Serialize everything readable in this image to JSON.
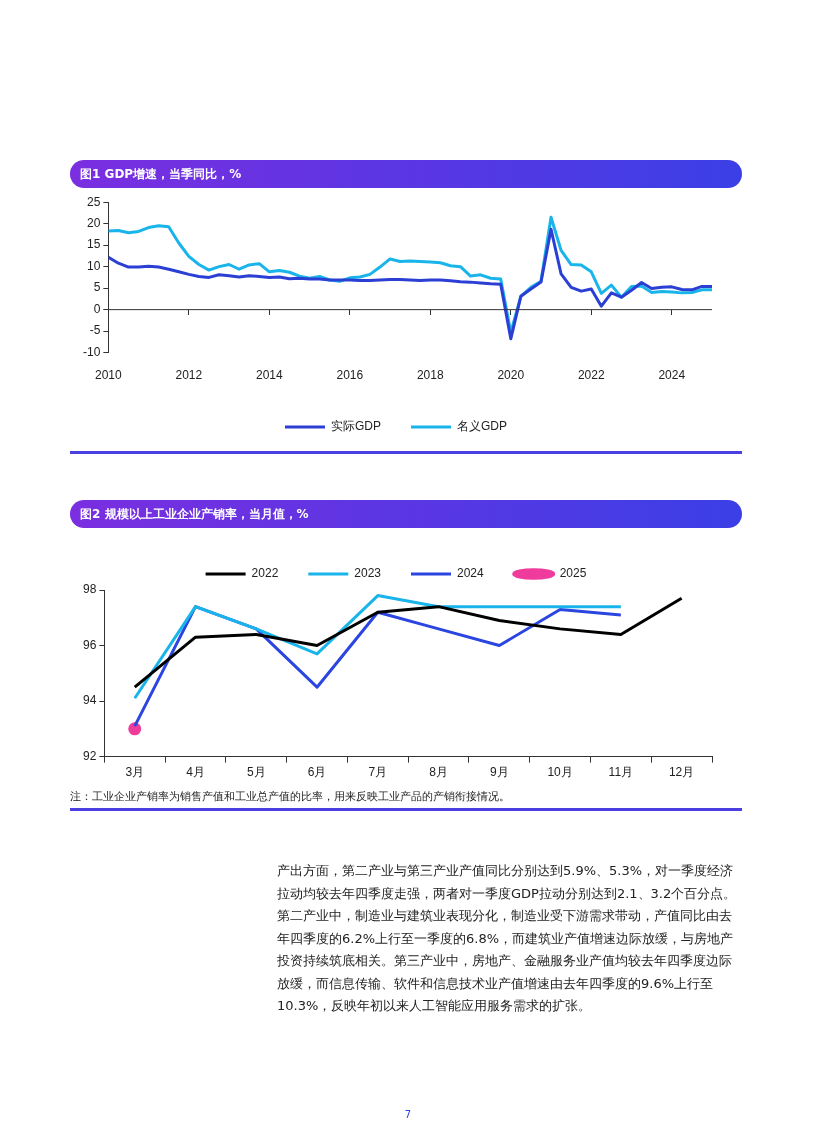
{
  "chart_data": [
    {
      "type": "line",
      "title": "图1 GDP增速，当季同比，%",
      "x": [
        2010,
        2010.25,
        2010.5,
        2010.75,
        2011,
        2011.25,
        2011.5,
        2011.75,
        2012,
        2012.25,
        2012.5,
        2012.75,
        2013,
        2013.25,
        2013.5,
        2013.75,
        2014,
        2014.25,
        2014.5,
        2014.75,
        2015,
        2015.25,
        2015.5,
        2015.75,
        2016,
        2016.25,
        2016.5,
        2016.75,
        2017,
        2017.25,
        2017.5,
        2017.75,
        2018,
        2018.25,
        2018.5,
        2018.75,
        2019,
        2019.25,
        2019.5,
        2019.75,
        2020,
        2020.25,
        2020.5,
        2020.75,
        2021,
        2021.25,
        2021.5,
        2021.75,
        2022,
        2022.25,
        2022.5,
        2022.75,
        2023,
        2023.25,
        2023.5,
        2023.75,
        2024,
        2024.25,
        2024.5,
        2024.75,
        2025
      ],
      "series": [
        {
          "name": "实际GDP",
          "color": "#2b3fd4",
          "values": [
            12.2,
            10.8,
            9.9,
            9.9,
            10.1,
            9.9,
            9.4,
            8.8,
            8.2,
            7.7,
            7.5,
            8.1,
            7.9,
            7.6,
            7.9,
            7.7,
            7.5,
            7.6,
            7.2,
            7.3,
            7.1,
            7.1,
            6.9,
            6.9,
            6.9,
            6.8,
            6.8,
            6.9,
            7.0,
            7.0,
            6.9,
            6.8,
            6.9,
            6.9,
            6.7,
            6.5,
            6.4,
            6.2,
            6.0,
            5.9,
            -6.8,
            3.1,
            4.8,
            6.4,
            18.7,
            8.3,
            5.2,
            4.3,
            4.8,
            0.8,
            3.9,
            2.9,
            4.5,
            6.3,
            4.9,
            5.2,
            5.3,
            4.7,
            4.6,
            5.4,
            5.4
          ]
        },
        {
          "name": "名义GDP",
          "color": "#19b4ea",
          "values": [
            18.3,
            18.4,
            17.9,
            18.2,
            19.1,
            19.5,
            19.3,
            15.5,
            12.4,
            10.5,
            9.2,
            10.0,
            10.5,
            9.4,
            10.4,
            10.7,
            8.8,
            9.1,
            8.7,
            7.8,
            7.3,
            7.7,
            6.9,
            6.6,
            7.4,
            7.6,
            8.2,
            9.9,
            11.8,
            11.2,
            11.3,
            11.2,
            11.1,
            10.9,
            10.2,
            10.0,
            7.8,
            8.1,
            7.3,
            7.1,
            -5.3,
            3.1,
            5.2,
            6.6,
            21.5,
            13.8,
            10.5,
            10.4,
            8.8,
            3.8,
            5.7,
            2.9,
            5.4,
            5.5,
            4.0,
            4.2,
            4.1,
            3.9,
            4.0,
            4.6,
            4.6
          ]
        }
      ],
      "xlim": [
        2010,
        2025
      ],
      "xticks": [
        2010,
        2012,
        2014,
        2016,
        2018,
        2020,
        2022,
        2024
      ],
      "ylim": [
        -10,
        25
      ],
      "yticks": [
        -10,
        -5,
        0,
        5,
        10,
        15,
        20,
        25
      ],
      "ref_lines": [
        {
          "axis": "y",
          "value": 0,
          "color": "#333333"
        }
      ],
      "grid": false,
      "legend": "bottom",
      "marker": "none",
      "line_style": "solid"
    },
    {
      "type": "line",
      "title": "图2 规模以上工业企业产销率，当月值，%",
      "categories": [
        "3月",
        "4月",
        "5月",
        "6月",
        "7月",
        "8月",
        "9月",
        "10月",
        "11月",
        "12月"
      ],
      "series": [
        {
          "name": "2022",
          "color": "#000000",
          "values": [
            94.5,
            96.3,
            96.4,
            96.0,
            97.2,
            97.4,
            96.9,
            96.6,
            96.4,
            97.7
          ]
        },
        {
          "name": "2023",
          "color": "#19b4ea",
          "values": [
            94.1,
            97.4,
            96.6,
            95.7,
            97.8,
            97.4,
            97.4,
            97.4,
            97.4,
            null
          ]
        },
        {
          "name": "2024",
          "color": "#2b45e0",
          "values": [
            93.1,
            97.4,
            96.6,
            94.5,
            97.2,
            96.6,
            96.0,
            97.3,
            97.1,
            null
          ]
        },
        {
          "name": "2025",
          "color": "#ef3c9c",
          "marker": "circle",
          "values": [
            93.0,
            null,
            null,
            null,
            null,
            null,
            null,
            null,
            null,
            null
          ]
        }
      ],
      "ylim": [
        92,
        98
      ],
      "yticks": [
        92,
        94,
        96,
        98
      ],
      "grid": false,
      "legend": "top",
      "line_style": "solid",
      "annotations": [
        "注：工业企业产销率为销售产值和工业总产值的比率，用来反映工业产品的产销衔接情况。"
      ]
    },
    {
      "type": "other",
      "annotations": [
        "产出方面，第二产业与第三产业产值同比分别达到5.9%、5.3%，对一季度经济拉动均较去年四季度走强，两者对一季度GDP拉动分别达到2.1、3.2个百分点。第二产业中，制造业与建筑业表现分化，制造业受下游需求带动，产值同比由去年四季度的6.2%上行至一季度的6.8%，而建筑业产值增速边际放缓，与房地产投资持续筑底相关。第三产业中，房地产、金融服务业产值均较去年四季度边际放缓，而信息传输、软件和信息技术业产值增速由去年四季度的9.6%上行至10.3%，反映年初以来人工智能应用服务需求的扩张。",
        "7"
      ]
    }
  ]
}
